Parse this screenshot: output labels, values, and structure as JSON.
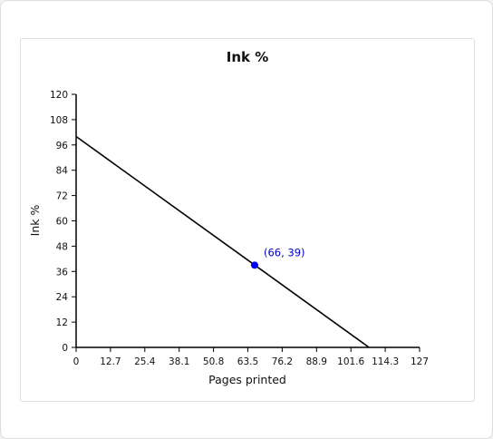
{
  "chart_data": {
    "type": "line",
    "title": "Ink %",
    "xlabel": "Pages printed",
    "ylabel": "Ink %",
    "xlim": [
      0,
      127
    ],
    "ylim": [
      0,
      120
    ],
    "x_ticks": [
      "0",
      "12.7",
      "25.4",
      "38.1",
      "50.8",
      "63.5",
      "76.2",
      "88.9",
      "101.6",
      "114.3",
      "127"
    ],
    "y_ticks": [
      "0",
      "12",
      "24",
      "36",
      "48",
      "60",
      "72",
      "84",
      "96",
      "108",
      "120"
    ],
    "series": [
      {
        "x": [
          0,
          108.3
        ],
        "y": [
          100,
          0
        ]
      }
    ],
    "highlight_point": {
      "x": 66,
      "y": 39,
      "label": "(66, 39)"
    },
    "grid": false,
    "colors": {
      "line": "#000000",
      "point": "#0000ee",
      "point_label": "#0000cc"
    }
  }
}
